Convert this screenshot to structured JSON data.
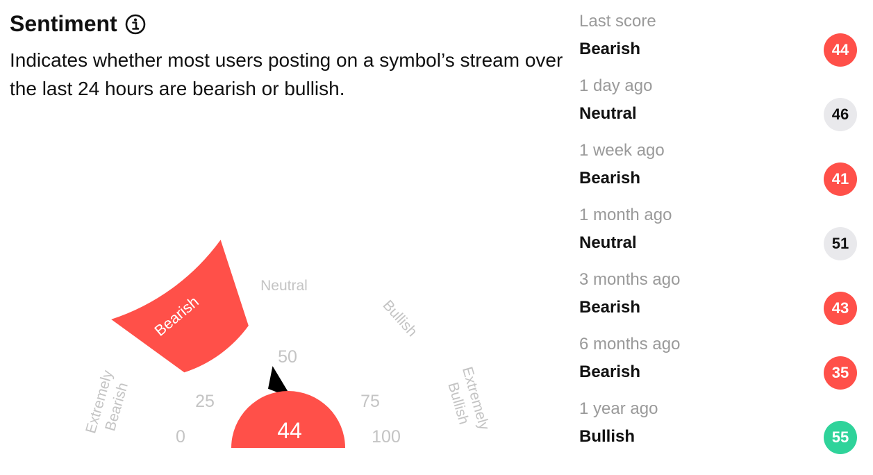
{
  "header": {
    "title": "Sentiment",
    "description": "Indicates whether most users posting on a symbol’s stream over the last 24 hours are bearish or bullish."
  },
  "gauge": {
    "score": "44",
    "active_segment": "Bearish",
    "segments": [
      "Extremely Bearish",
      "Bearish",
      "Neutral",
      "Bullish",
      "Extremely Bullish"
    ],
    "ticks": [
      "0",
      "25",
      "50",
      "75",
      "100"
    ],
    "seg_extreme_bearish_line1": "Extremely",
    "seg_extreme_bearish_line2": "Bearish",
    "seg_bearish": "Bearish",
    "seg_neutral": "Neutral",
    "seg_bullish": "Bullish",
    "seg_extreme_bullish_line1": "Extremely",
    "seg_extreme_bullish_line2": "Bullish",
    "value": 44,
    "min": 0,
    "max": 100
  },
  "history": [
    {
      "period": "Last score",
      "label": "Bearish",
      "score": "44",
      "status": "bearish"
    },
    {
      "period": "1 day ago",
      "label": "Neutral",
      "score": "46",
      "status": "neutral"
    },
    {
      "period": "1 week ago",
      "label": "Bearish",
      "score": "41",
      "status": "bearish"
    },
    {
      "period": "1 month ago",
      "label": "Neutral",
      "score": "51",
      "status": "neutral"
    },
    {
      "period": "3 months ago",
      "label": "Bearish",
      "score": "43",
      "status": "bearish"
    },
    {
      "period": "6 months ago",
      "label": "Bearish",
      "score": "35",
      "status": "bearish"
    },
    {
      "period": "1 year ago",
      "label": "Bullish",
      "score": "55",
      "status": "bullish"
    }
  ],
  "colors": {
    "bearish": "#ff5049",
    "neutral": "#e9e9ec",
    "bullish": "#2fd39a",
    "muted": "#c4c4c4"
  },
  "icons": {
    "info": "info-circle-icon"
  }
}
